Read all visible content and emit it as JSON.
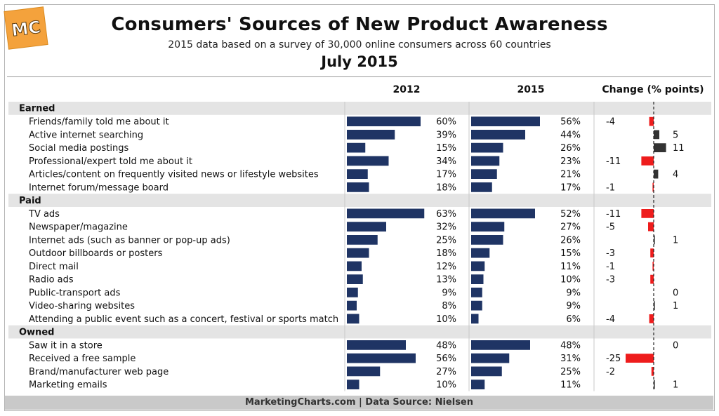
{
  "logo_text": "MC",
  "title": "Consumers' Sources of New Product Awareness",
  "subtitle": "2015 data based on a survey of 30,000 online consumers across 60 countries",
  "date": "July 2015",
  "footer": "MarketingCharts.com | Data Source: Nielsen",
  "colors": {
    "bar": "#1f3464",
    "negative": "#ee1c1c",
    "positive": "#333333",
    "band": "#e4e4e4",
    "footer_bg": "#c9c9c9"
  },
  "chart_data": {
    "type": "table",
    "columns": [
      "2012",
      "2015",
      "Change (% points)"
    ],
    "value_format": "%",
    "groups": [
      {
        "name": "Earned",
        "rows": [
          {
            "label": "Friends/family told me about it",
            "v2012": 60,
            "v2015": 56,
            "change": -4
          },
          {
            "label": "Active internet searching",
            "v2012": 39,
            "v2015": 44,
            "change": 5
          },
          {
            "label": "Social media postings",
            "v2012": 15,
            "v2015": 26,
            "change": 11
          },
          {
            "label": "Professional/expert told me about it",
            "v2012": 34,
            "v2015": 23,
            "change": -11
          },
          {
            "label": "Articles/content on frequently visited news or lifestyle websites",
            "v2012": 17,
            "v2015": 21,
            "change": 4
          },
          {
            "label": "Internet forum/message board",
            "v2012": 18,
            "v2015": 17,
            "change": -1
          }
        ]
      },
      {
        "name": "Paid",
        "rows": [
          {
            "label": "TV ads",
            "v2012": 63,
            "v2015": 52,
            "change": -11
          },
          {
            "label": "Newspaper/magazine",
            "v2012": 32,
            "v2015": 27,
            "change": -5
          },
          {
            "label": "Internet ads (such as banner or pop-up ads)",
            "v2012": 25,
            "v2015": 26,
            "change": 1
          },
          {
            "label": "Outdoor billboards or posters",
            "v2012": 18,
            "v2015": 15,
            "change": -3
          },
          {
            "label": "Direct mail",
            "v2012": 12,
            "v2015": 11,
            "change": -1
          },
          {
            "label": "Radio ads",
            "v2012": 13,
            "v2015": 10,
            "change": -3
          },
          {
            "label": "Public-transport ads",
            "v2012": 9,
            "v2015": 9,
            "change": 0
          },
          {
            "label": "Video-sharing websites",
            "v2012": 8,
            "v2015": 9,
            "change": 1
          },
          {
            "label": "Attending a public event such as a concert, festival or sports match",
            "v2012": 10,
            "v2015": 6,
            "change": -4
          }
        ]
      },
      {
        "name": "Owned",
        "rows": [
          {
            "label": "Saw it in a store",
            "v2012": 48,
            "v2015": 48,
            "change": 0
          },
          {
            "label": "Received a free sample",
            "v2012": 56,
            "v2015": 31,
            "change": -25
          },
          {
            "label": "Brand/manufacturer web page",
            "v2012": 27,
            "v2015": 25,
            "change": -2
          },
          {
            "label": "Marketing emails",
            "v2012": 10,
            "v2015": 11,
            "change": 1
          }
        ]
      }
    ]
  }
}
